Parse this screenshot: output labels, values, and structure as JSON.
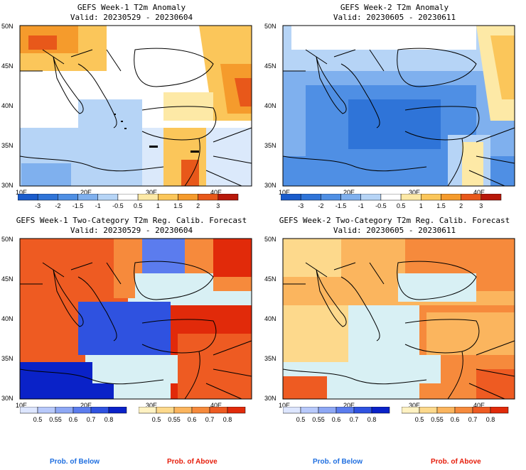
{
  "panels": [
    {
      "title": "GEFS Week-1 T2m Anomaly",
      "valid": "Valid: 20230529 - 20230604"
    },
    {
      "title": "GEFS Week-2 T2m Anomaly",
      "valid": "Valid: 20230605 - 20230611"
    },
    {
      "title": "GEFS Week-1 Two-Category T2m Reg. Calib. Forecast",
      "valid": "Valid: 20230529 - 20230604"
    },
    {
      "title": "GEFS Week-2 Two-Category T2m Reg. Calib. Forecast",
      "valid": "Valid: 20230605 - 20230611"
    }
  ],
  "lat_labels": [
    "50N",
    "45N",
    "40N",
    "35N",
    "30N"
  ],
  "lon_labels": [
    "10E",
    "20E",
    "30E",
    "40E"
  ],
  "anomaly_colorbar": {
    "ticks": [
      "-3",
      "-2",
      "-1.5",
      "-1",
      "-0.5",
      "0.5",
      "1",
      "1.5",
      "2",
      "3"
    ],
    "colors": [
      "#1a5ccc",
      "#2f74d8",
      "#4f8fe4",
      "#7fb0ee",
      "#b6d4f6",
      "#ffffff",
      "#fde9a6",
      "#fbc65a",
      "#f59b2c",
      "#e8581a",
      "#b8180a"
    ]
  },
  "prob_colorbars": {
    "ticks": [
      "0.5",
      "0.55",
      "0.6",
      "0.7",
      "0.8"
    ],
    "below_colors": [
      "#dde6ff",
      "#b8c9fb",
      "#8ea8f5",
      "#5b7cee",
      "#2f52e0",
      "#0a22c8"
    ],
    "above_colors": [
      "#fff2c2",
      "#fdd98c",
      "#fbb55e",
      "#f68a3c",
      "#ee5b22",
      "#e12a0a"
    ]
  },
  "footer": {
    "below_label": "Prob. of Below",
    "above_label": "Prob. of Above",
    "below_color": "#1f6fe0",
    "above_color": "#e61c0a"
  },
  "colors": {
    "sea": "#d8f0f4",
    "land_neutral": "#ffffff",
    "coast": "#000000"
  }
}
